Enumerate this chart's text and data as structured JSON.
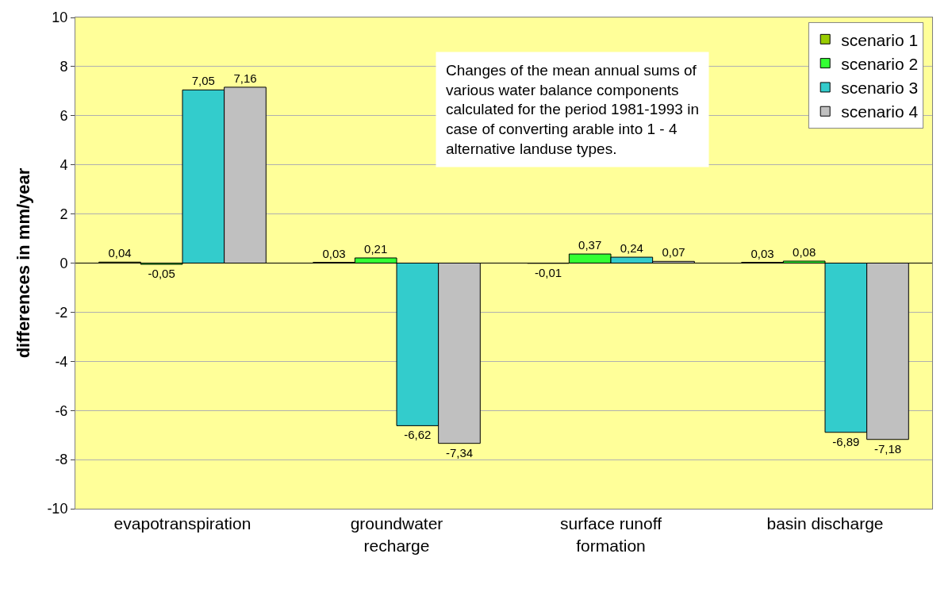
{
  "chart_data": {
    "type": "bar",
    "ylabel": "differences in mm/year",
    "categories": [
      "evapotranspiration",
      "groundwater recharge",
      "surface runoff formation",
      "basin discharge"
    ],
    "series": [
      {
        "name": "scenario 1",
        "color": "#99cc00",
        "values": [
          0.04,
          0.03,
          -0.01,
          0.03
        ],
        "value_labels": [
          "0,04",
          "0,03",
          "-0,01",
          "0,03"
        ]
      },
      {
        "name": "scenario 2",
        "color": "#33ff33",
        "values": [
          -0.05,
          0.21,
          0.37,
          0.08
        ],
        "value_labels": [
          "-0,05",
          "0,21",
          "0,37",
          "0,08"
        ]
      },
      {
        "name": "scenario 3",
        "color": "#33cccc",
        "values": [
          7.05,
          -6.62,
          0.24,
          -6.89
        ],
        "value_labels": [
          "7,05",
          "-6,62",
          "0,24",
          "-6,89"
        ]
      },
      {
        "name": "scenario 4",
        "color": "#c0c0c0",
        "values": [
          7.16,
          -7.34,
          0.07,
          -7.18
        ],
        "value_labels": [
          "7,16",
          "-7,34",
          "0,07",
          "-7,18"
        ]
      }
    ],
    "ylim": [
      -10,
      10
    ],
    "yticks": [
      -10,
      -8,
      -6,
      -4,
      -2,
      0,
      2,
      4,
      6,
      8,
      10
    ],
    "grid": "y",
    "legend": "top right",
    "annotations": [
      "Changes of the mean annual sums of various water balance components calculated for the period 1981-1993 in case of converting arable into 1 - 4 alternative landuse types."
    ]
  }
}
